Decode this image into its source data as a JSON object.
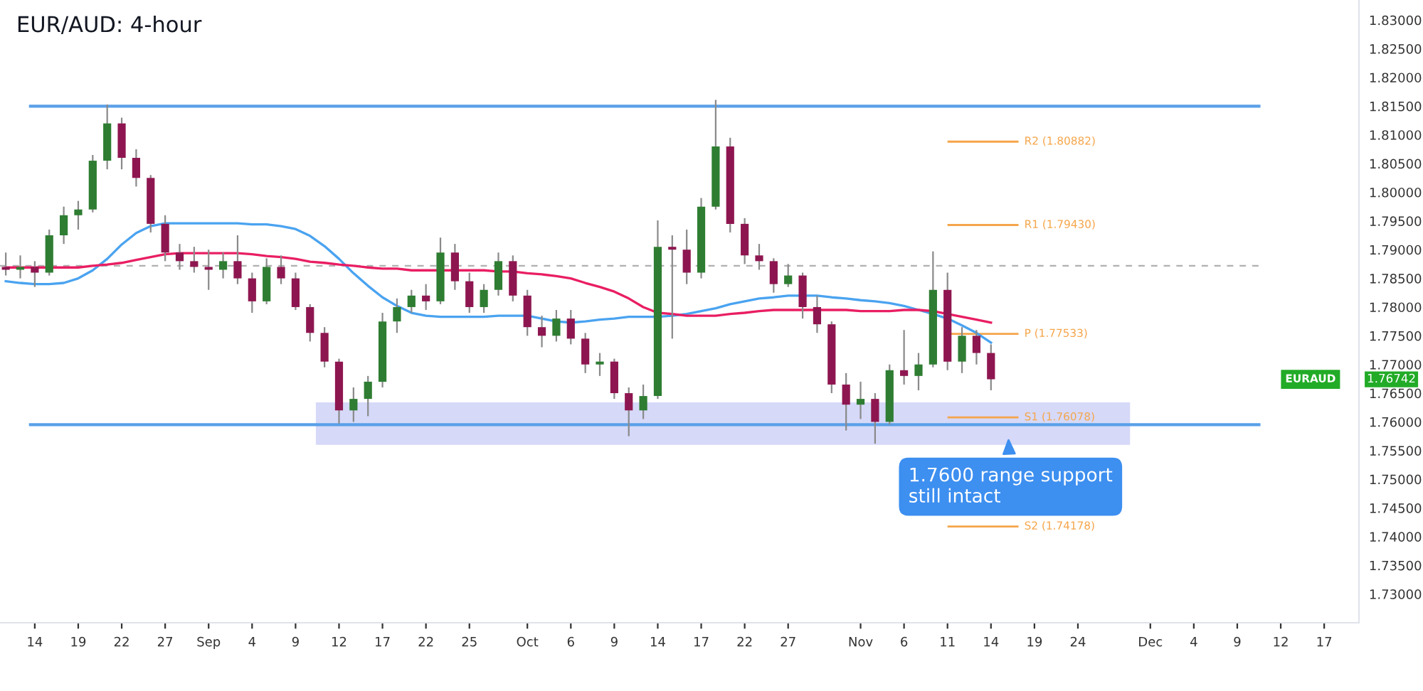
{
  "chart_data": {
    "type": "candlestick",
    "title": "EUR/AUD: 4-hour",
    "categories": [
      null,
      null,
      "14",
      null,
      null,
      "19",
      null,
      null,
      "22",
      null,
      null,
      "27",
      null,
      null,
      "Sep",
      null,
      null,
      "4",
      null,
      null,
      "9",
      null,
      null,
      "12",
      null,
      null,
      "17",
      null,
      null,
      "22",
      null,
      null,
      "25",
      null,
      null,
      null,
      "Oct",
      null,
      null,
      "6",
      null,
      null,
      "9",
      null,
      null,
      "14",
      null,
      null,
      "17",
      null,
      null,
      "22",
      null,
      null,
      "27",
      null,
      null,
      null,
      null,
      "Nov",
      null,
      null,
      "6",
      null,
      null,
      "11",
      null,
      null,
      "14",
      null,
      null,
      "19",
      null,
      null,
      "24",
      null,
      null,
      null,
      null,
      "Dec",
      null,
      null,
      "4",
      null,
      null,
      "9",
      null,
      null,
      "12",
      null,
      null,
      "17",
      null,
      null
    ],
    "series": [
      {
        "ohlc": [
          [
            1.787,
            1.7895,
            1.7855,
            1.7865
          ],
          [
            1.7865,
            1.789,
            1.785,
            1.787
          ],
          [
            1.787,
            1.788,
            1.7835,
            1.786
          ],
          [
            1.786,
            1.7935,
            1.7855,
            1.7925
          ],
          [
            1.7925,
            1.7975,
            1.791,
            1.796
          ],
          [
            1.796,
            1.7985,
            1.7935,
            1.797
          ],
          [
            1.797,
            1.8065,
            1.7965,
            1.8055
          ],
          [
            1.8055,
            1.8153,
            1.804,
            1.812
          ],
          [
            1.812,
            1.813,
            1.804,
            1.806
          ],
          [
            1.806,
            1.8075,
            1.801,
            1.8025
          ],
          [
            1.8025,
            1.803,
            1.793,
            1.7945
          ],
          [
            1.7945,
            1.796,
            1.788,
            1.7895
          ],
          [
            1.7895,
            1.791,
            1.7865,
            1.788
          ],
          [
            1.788,
            1.7905,
            1.786,
            1.787
          ],
          [
            1.787,
            1.79,
            1.783,
            1.7865
          ],
          [
            1.7865,
            1.7895,
            1.785,
            1.788
          ],
          [
            1.788,
            1.7925,
            1.784,
            1.785
          ],
          [
            1.785,
            1.786,
            1.779,
            1.781
          ],
          [
            1.781,
            1.7885,
            1.7805,
            1.787
          ],
          [
            1.787,
            1.789,
            1.784,
            1.785
          ],
          [
            1.785,
            1.786,
            1.7795,
            1.78
          ],
          [
            1.78,
            1.7805,
            1.774,
            1.7755
          ],
          [
            1.7755,
            1.7765,
            1.7695,
            1.7705
          ],
          [
            1.7705,
            1.771,
            1.7597,
            1.762
          ],
          [
            1.762,
            1.766,
            1.76,
            1.764
          ],
          [
            1.764,
            1.768,
            1.761,
            1.767
          ],
          [
            1.767,
            1.779,
            1.766,
            1.7775
          ],
          [
            1.7775,
            1.7815,
            1.7755,
            1.78
          ],
          [
            1.78,
            1.783,
            1.779,
            1.782
          ],
          [
            1.782,
            1.784,
            1.7795,
            1.781
          ],
          [
            1.781,
            1.7921,
            1.7805,
            1.7895
          ],
          [
            1.7895,
            1.791,
            1.783,
            1.7845
          ],
          [
            1.7845,
            1.786,
            1.779,
            1.78
          ],
          [
            1.78,
            1.784,
            1.779,
            1.783
          ],
          [
            1.783,
            1.7895,
            1.782,
            1.788
          ],
          [
            1.788,
            1.789,
            1.781,
            1.782
          ],
          [
            1.782,
            1.783,
            1.775,
            1.7765
          ],
          [
            1.7765,
            1.7785,
            1.773,
            1.775
          ],
          [
            1.775,
            1.7795,
            1.774,
            1.778
          ],
          [
            1.778,
            1.7795,
            1.7735,
            1.7745
          ],
          [
            1.7745,
            1.7755,
            1.7685,
            1.77
          ],
          [
            1.77,
            1.772,
            1.768,
            1.7705
          ],
          [
            1.7705,
            1.771,
            1.764,
            1.765
          ],
          [
            1.765,
            1.766,
            1.7575,
            1.762
          ],
          [
            1.762,
            1.7665,
            1.7605,
            1.7645
          ],
          [
            1.7645,
            1.7951,
            1.764,
            1.7905
          ],
          [
            1.7905,
            1.7925,
            1.7745,
            1.79
          ],
          [
            1.79,
            1.7935,
            1.784,
            1.786
          ],
          [
            1.786,
            1.799,
            1.785,
            1.7975
          ],
          [
            1.7975,
            1.8161,
            1.797,
            1.808
          ],
          [
            1.808,
            1.8095,
            1.793,
            1.7945
          ],
          [
            1.7945,
            1.7955,
            1.7875,
            1.789
          ],
          [
            1.789,
            1.791,
            1.7865,
            1.788
          ],
          [
            1.788,
            1.7885,
            1.7825,
            1.784
          ],
          [
            1.784,
            1.7875,
            1.7835,
            1.7855
          ],
          [
            1.7855,
            1.786,
            1.778,
            1.78
          ],
          [
            1.78,
            1.782,
            1.7755,
            1.777
          ],
          [
            1.777,
            1.7775,
            1.765,
            1.7665
          ],
          [
            1.7665,
            1.7685,
            1.7585,
            1.763
          ],
          [
            1.763,
            1.767,
            1.7605,
            1.764
          ],
          [
            1.764,
            1.765,
            1.7562,
            1.76
          ],
          [
            1.76,
            1.77,
            1.7595,
            1.769
          ],
          [
            1.769,
            1.776,
            1.7665,
            1.768
          ],
          [
            1.768,
            1.772,
            1.7655,
            1.77
          ],
          [
            1.77,
            1.7897,
            1.7695,
            1.783
          ],
          [
            1.783,
            1.786,
            1.769,
            1.7705
          ],
          [
            1.7705,
            1.7765,
            1.7685,
            1.775
          ],
          [
            1.775,
            1.776,
            1.77,
            1.772
          ],
          [
            1.772,
            1.7735,
            1.7655,
            1.76742
          ],
          null,
          null,
          null,
          null,
          null,
          null,
          null,
          null,
          null,
          null,
          null,
          null,
          null,
          null,
          null,
          null,
          null,
          null,
          null,
          null,
          null,
          null,
          null,
          null,
          null
        ],
        "colors": [
          "#8e1650",
          "#2e7d32",
          "#8e1650",
          "#2e7d32",
          "#2e7d32",
          "#2e7d32",
          "#2e7d32",
          "#2e7d32",
          "#8e1650",
          "#8e1650",
          "#8e1650",
          "#8e1650",
          "#8e1650",
          "#8e1650",
          "#8e1650",
          "#2e7d32",
          "#8e1650",
          "#8e1650",
          "#2e7d32",
          "#8e1650",
          "#8e1650",
          "#8e1650",
          "#8e1650",
          "#8e1650",
          "#2e7d32",
          "#2e7d32",
          "#2e7d32",
          "#2e7d32",
          "#2e7d32",
          "#8e1650",
          "#2e7d32",
          "#8e1650",
          "#8e1650",
          "#2e7d32",
          "#2e7d32",
          "#8e1650",
          "#8e1650",
          "#8e1650",
          "#2e7d32",
          "#8e1650",
          "#8e1650",
          "#2e7d32",
          "#8e1650",
          "#8e1650",
          "#2e7d32",
          "#2e7d32",
          "#8e1650",
          "#8e1650",
          "#2e7d32",
          "#2e7d32",
          "#8e1650",
          "#8e1650",
          "#8e1650",
          "#8e1650",
          "#2e7d32",
          "#8e1650",
          "#8e1650",
          "#8e1650",
          "#8e1650",
          "#2e7d32",
          "#8e1650",
          "#2e7d32",
          "#8e1650",
          "#2e7d32",
          "#2e7d32",
          "#8e1650",
          "#2e7d32",
          "#8e1650",
          "#8e1650",
          null,
          null,
          null,
          null,
          null,
          null,
          null,
          null,
          null,
          null,
          null,
          null,
          null,
          null,
          null,
          null,
          null,
          null,
          null,
          null,
          null,
          null,
          null,
          null,
          null
        ]
      },
      {
        "type": "line",
        "color": "#4aa3f0",
        "values": [
          1.7845,
          1.7842,
          1.784,
          1.784,
          1.7842,
          1.785,
          1.7864,
          1.7884,
          1.7909,
          1.7929,
          1.7941,
          1.7946,
          1.7946,
          1.7946,
          1.7946,
          1.7946,
          1.7946,
          1.7944,
          1.7944,
          1.7941,
          1.7936,
          1.7924,
          1.7906,
          1.7884,
          1.7859,
          1.7837,
          1.7817,
          1.7802,
          1.779,
          1.7785,
          1.7783,
          1.7783,
          1.7783,
          1.7783,
          1.7785,
          1.7785,
          1.7785,
          1.778,
          1.7775,
          1.7773,
          1.7775,
          1.7778,
          1.778,
          1.7783,
          1.7783,
          1.7783,
          1.7785,
          1.7788,
          1.7793,
          1.7798,
          1.7805,
          1.781,
          1.7815,
          1.7817,
          1.782,
          1.782,
          1.782,
          1.7817,
          1.7815,
          1.7812,
          1.781,
          1.7807,
          1.7802,
          1.7795,
          1.7788,
          1.778,
          1.7768,
          1.7755,
          1.7738,
          null,
          null,
          null,
          null,
          null,
          null,
          null,
          null,
          null,
          null,
          null,
          null,
          null,
          null,
          null,
          null,
          null,
          null,
          null,
          null,
          null,
          null,
          null,
          null,
          null
        ]
      },
      {
        "type": "line",
        "color": "#e91e63",
        "values": [
          1.7869,
          1.7869,
          1.7869,
          1.7869,
          1.7869,
          1.7869,
          1.7872,
          1.7874,
          1.7877,
          1.7882,
          1.7887,
          1.7892,
          1.7894,
          1.7894,
          1.7894,
          1.7894,
          1.7894,
          1.7892,
          1.7889,
          1.7887,
          1.7884,
          1.7879,
          1.7877,
          1.7874,
          1.7872,
          1.7869,
          1.7867,
          1.7867,
          1.7864,
          1.7864,
          1.7864,
          1.7864,
          1.7864,
          1.7864,
          1.7862,
          1.7862,
          1.7859,
          1.7857,
          1.7854,
          1.785,
          1.7842,
          1.7835,
          1.7827,
          1.7815,
          1.78,
          1.779,
          1.7788,
          1.7785,
          1.7785,
          1.7785,
          1.7788,
          1.779,
          1.7793,
          1.7795,
          1.7795,
          1.7795,
          1.7795,
          1.7795,
          1.7795,
          1.7793,
          1.7793,
          1.7793,
          1.7795,
          1.7795,
          1.7793,
          1.7788,
          1.7783,
          1.7778,
          1.7773,
          null,
          null,
          null,
          null,
          null,
          null,
          null,
          null,
          null,
          null,
          null,
          null,
          null,
          null,
          null,
          null,
          null,
          null,
          null,
          null,
          null,
          null,
          null,
          null,
          null
        ]
      }
    ],
    "ylim": [
      1.725,
      1.8335
    ],
    "yticks": [
      {
        "value": 1.73,
        "label": "1.73000"
      },
      {
        "value": 1.735,
        "label": "1.73500"
      },
      {
        "value": 1.74,
        "label": "1.74000"
      },
      {
        "value": 1.745,
        "label": "1.74500"
      },
      {
        "value": 1.75,
        "label": "1.75000"
      },
      {
        "value": 1.755,
        "label": "1.75500"
      },
      {
        "value": 1.76,
        "label": "1.76000"
      },
      {
        "value": 1.765,
        "label": "1.76500"
      },
      {
        "value": 1.77,
        "label": "1.77000"
      },
      {
        "value": 1.775,
        "label": "1.77500"
      },
      {
        "value": 1.78,
        "label": "1.78000"
      },
      {
        "value": 1.785,
        "label": "1.78500"
      },
      {
        "value": 1.79,
        "label": "1.79000"
      },
      {
        "value": 1.795,
        "label": "1.79500"
      },
      {
        "value": 1.8,
        "label": "1.80000"
      },
      {
        "value": 1.805,
        "label": "1.80500"
      },
      {
        "value": 1.81,
        "label": "1.81000"
      },
      {
        "value": 1.815,
        "label": "1.81500"
      },
      {
        "value": 1.82,
        "label": "1.82000"
      },
      {
        "value": 1.825,
        "label": "1.82500"
      },
      {
        "value": 1.83,
        "label": "1.83000"
      }
    ],
    "ref_lines": [
      {
        "axis": "y",
        "value": 1.815,
        "color": "#5aa0e8"
      },
      {
        "axis": "y",
        "value": 1.7595,
        "color": "#5aa0e8"
      },
      {
        "axis": "y",
        "value": 1.7872,
        "color": "#b0b0b0",
        "line_style": "dashed"
      },
      {
        "axis": "y",
        "value": 1.80882,
        "label": "R2 (1.80882)",
        "color": "#f5a54a"
      },
      {
        "axis": "y",
        "value": 1.7943,
        "label": "R1 (1.79430)",
        "color": "#f5a54a"
      },
      {
        "axis": "y",
        "value": 1.77533,
        "label": "P (1.77533)",
        "color": "#f5a54a"
      },
      {
        "axis": "y",
        "value": 1.76078,
        "label": "S1 (1.76078)",
        "color": "#f5a54a"
      },
      {
        "axis": "y",
        "value": 1.74178,
        "label": "S2 (1.74178)",
        "color": "#f5a54a"
      }
    ],
    "bands": [
      {
        "axis": "y",
        "from": 1.756,
        "to": 1.7634,
        "color": "#d6d9f8"
      }
    ],
    "annotations": [
      "1.7600 range support\nstill intact",
      "EURAUD",
      "1.76742"
    ],
    "grid": false,
    "legend": false
  }
}
